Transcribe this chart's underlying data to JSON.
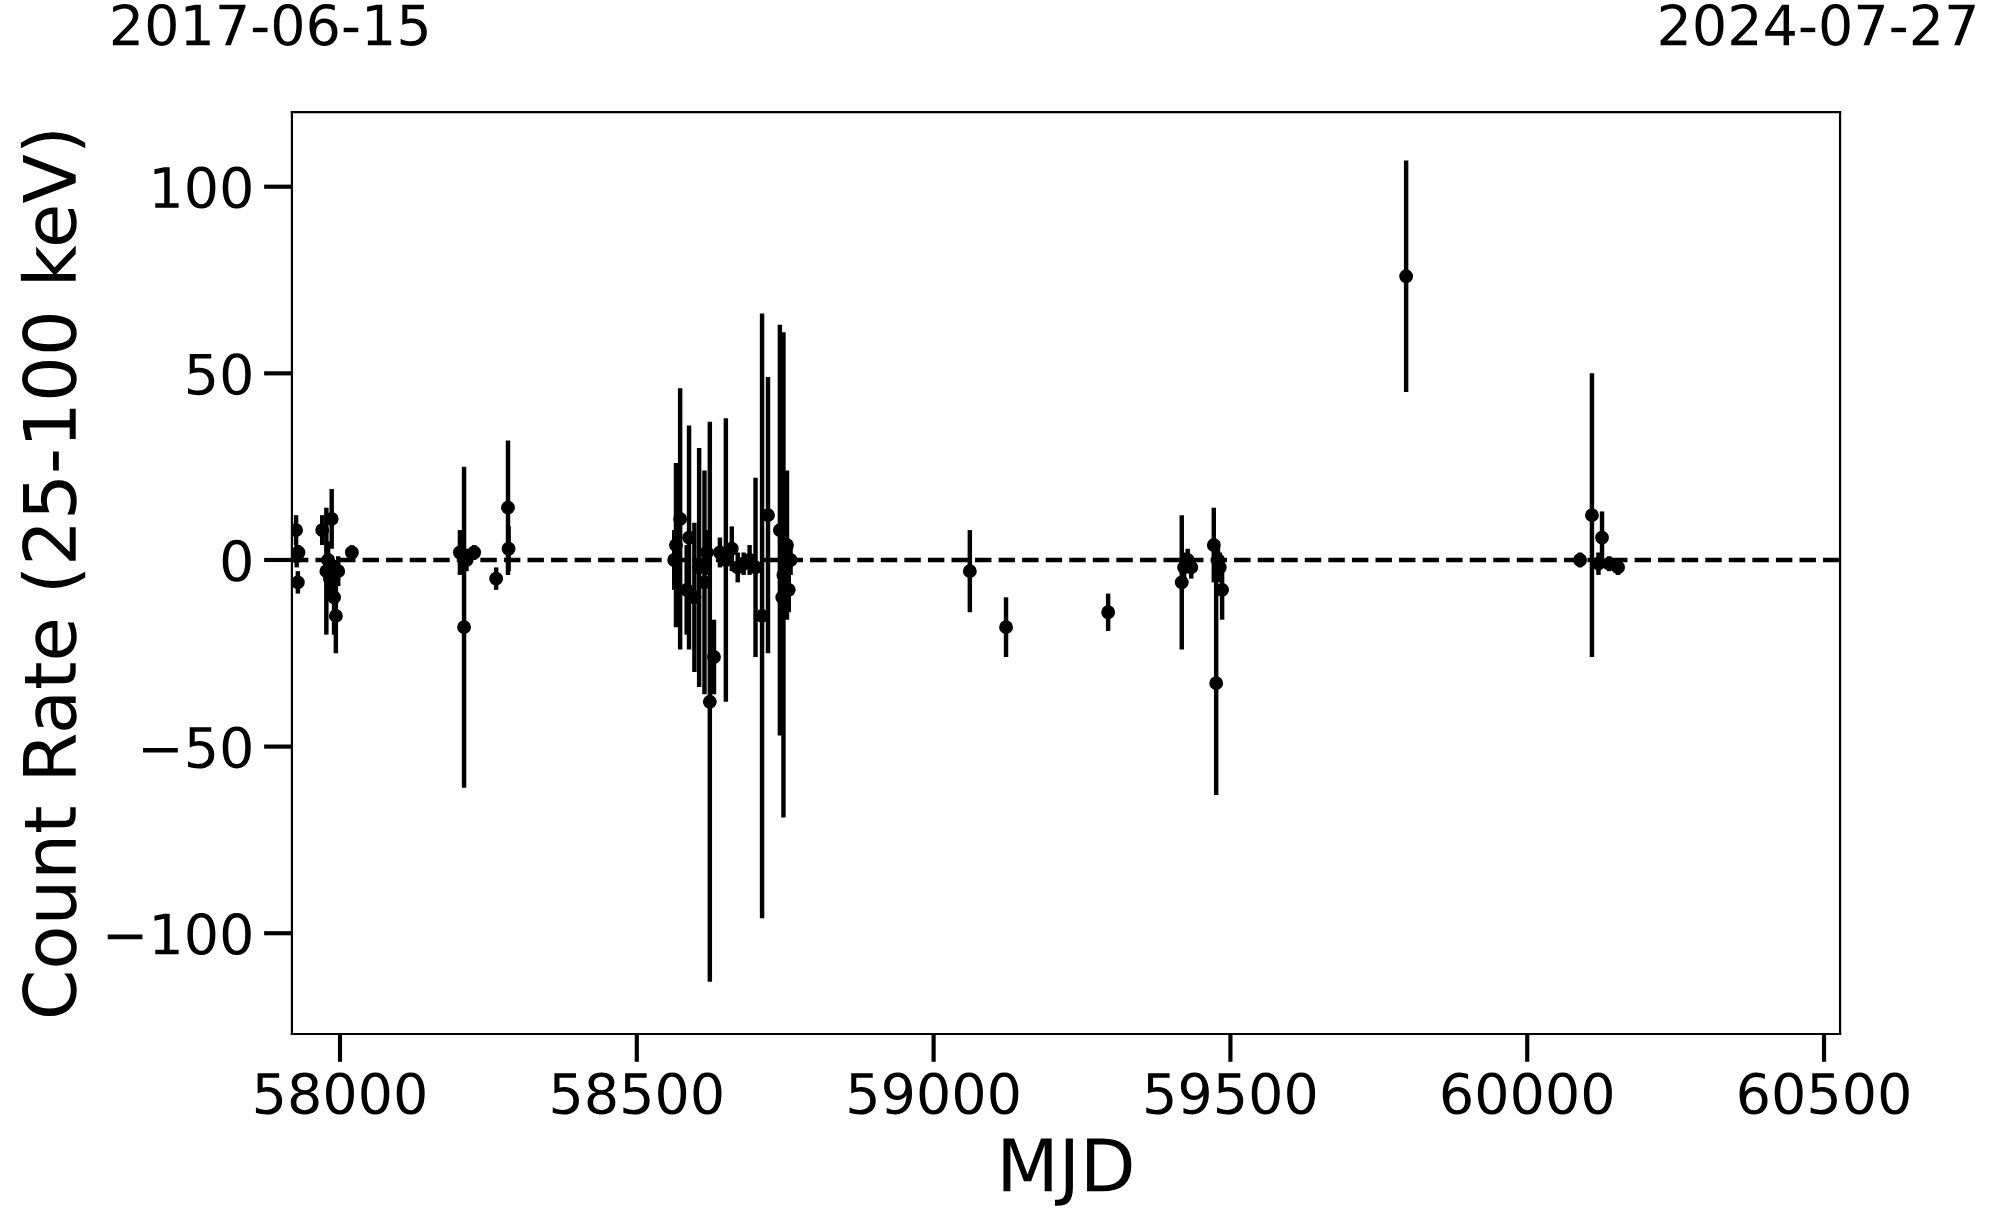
{
  "chart_data": {
    "type": "scatter",
    "xlabel": "MJD",
    "ylabel": "Count Rate (25-100 keV)",
    "annotations": [
      "2017-06-15",
      "2024-07-27"
    ],
    "xlim": [
      57919,
      60527
    ],
    "xticks": [
      58000,
      58500,
      59000,
      59500,
      60000,
      60500
    ],
    "ylim": [
      -127,
      120
    ],
    "yticks": [
      {
        "value": -100,
        "label": "−100"
      },
      {
        "value": -50,
        "label": "−50"
      },
      0,
      50,
      100
    ],
    "marker": "circle",
    "grid": false,
    "ref_lines": [
      {
        "axis": "y",
        "value": 0,
        "color": "#000000",
        "line_style": "dashed"
      }
    ],
    "series": [
      {
        "color": "#000000",
        "x": [
          57926,
          57927,
          57929,
          57930,
          57970,
          57977,
          57980,
          57983,
          57986,
          57990,
          57993,
          57997,
          58020,
          58202,
          58209,
          58213,
          58226,
          58263,
          58283,
          58284,
          58563,
          58566,
          58573,
          58584,
          58588,
          58597,
          58605,
          58614,
          58618,
          58623,
          58630,
          58640,
          58650,
          58660,
          58670,
          58680,
          58690,
          58700,
          58711,
          58721,
          58741,
          58745,
          58747,
          58753,
          58756,
          58759,
          59061,
          59122,
          59294,
          59418,
          59422,
          59428,
          59434,
          59472,
          59476,
          59479,
          59482,
          59486,
          59796,
          60089,
          60109,
          60120,
          60126,
          60138,
          60153
        ],
        "values": [
          8,
          1,
          -6,
          2,
          8,
          -3,
          0,
          -5,
          11,
          -10,
          -15,
          -3,
          2,
          2,
          -18,
          0,
          2,
          -5,
          14,
          3,
          0,
          4,
          11,
          -8,
          6,
          -10,
          -2,
          -6,
          2,
          -38,
          -26,
          2,
          0,
          3,
          -2,
          -1,
          0,
          -2,
          -15,
          12,
          8,
          -10,
          -4,
          4,
          -8,
          0,
          -3,
          -18,
          -14,
          -6,
          -2,
          0,
          -2,
          4,
          -33,
          0,
          -2,
          -8,
          76,
          0,
          12,
          -1,
          6,
          -1,
          -2
        ],
        "errors": [
          4,
          3,
          3,
          2,
          4,
          17,
          5,
          6,
          8,
          10,
          10,
          4,
          2,
          6,
          43,
          3,
          2,
          3,
          18,
          6,
          8,
          22,
          35,
          12,
          30,
          20,
          32,
          30,
          6,
          75,
          10,
          4,
          38,
          6,
          4,
          3,
          4,
          24,
          81,
          37,
          55,
          25,
          65,
          20,
          6,
          4,
          11,
          8,
          5,
          18,
          4,
          3,
          3,
          10,
          30,
          5,
          4,
          8,
          31,
          2,
          38,
          3,
          7,
          2,
          2
        ]
      }
    ]
  }
}
